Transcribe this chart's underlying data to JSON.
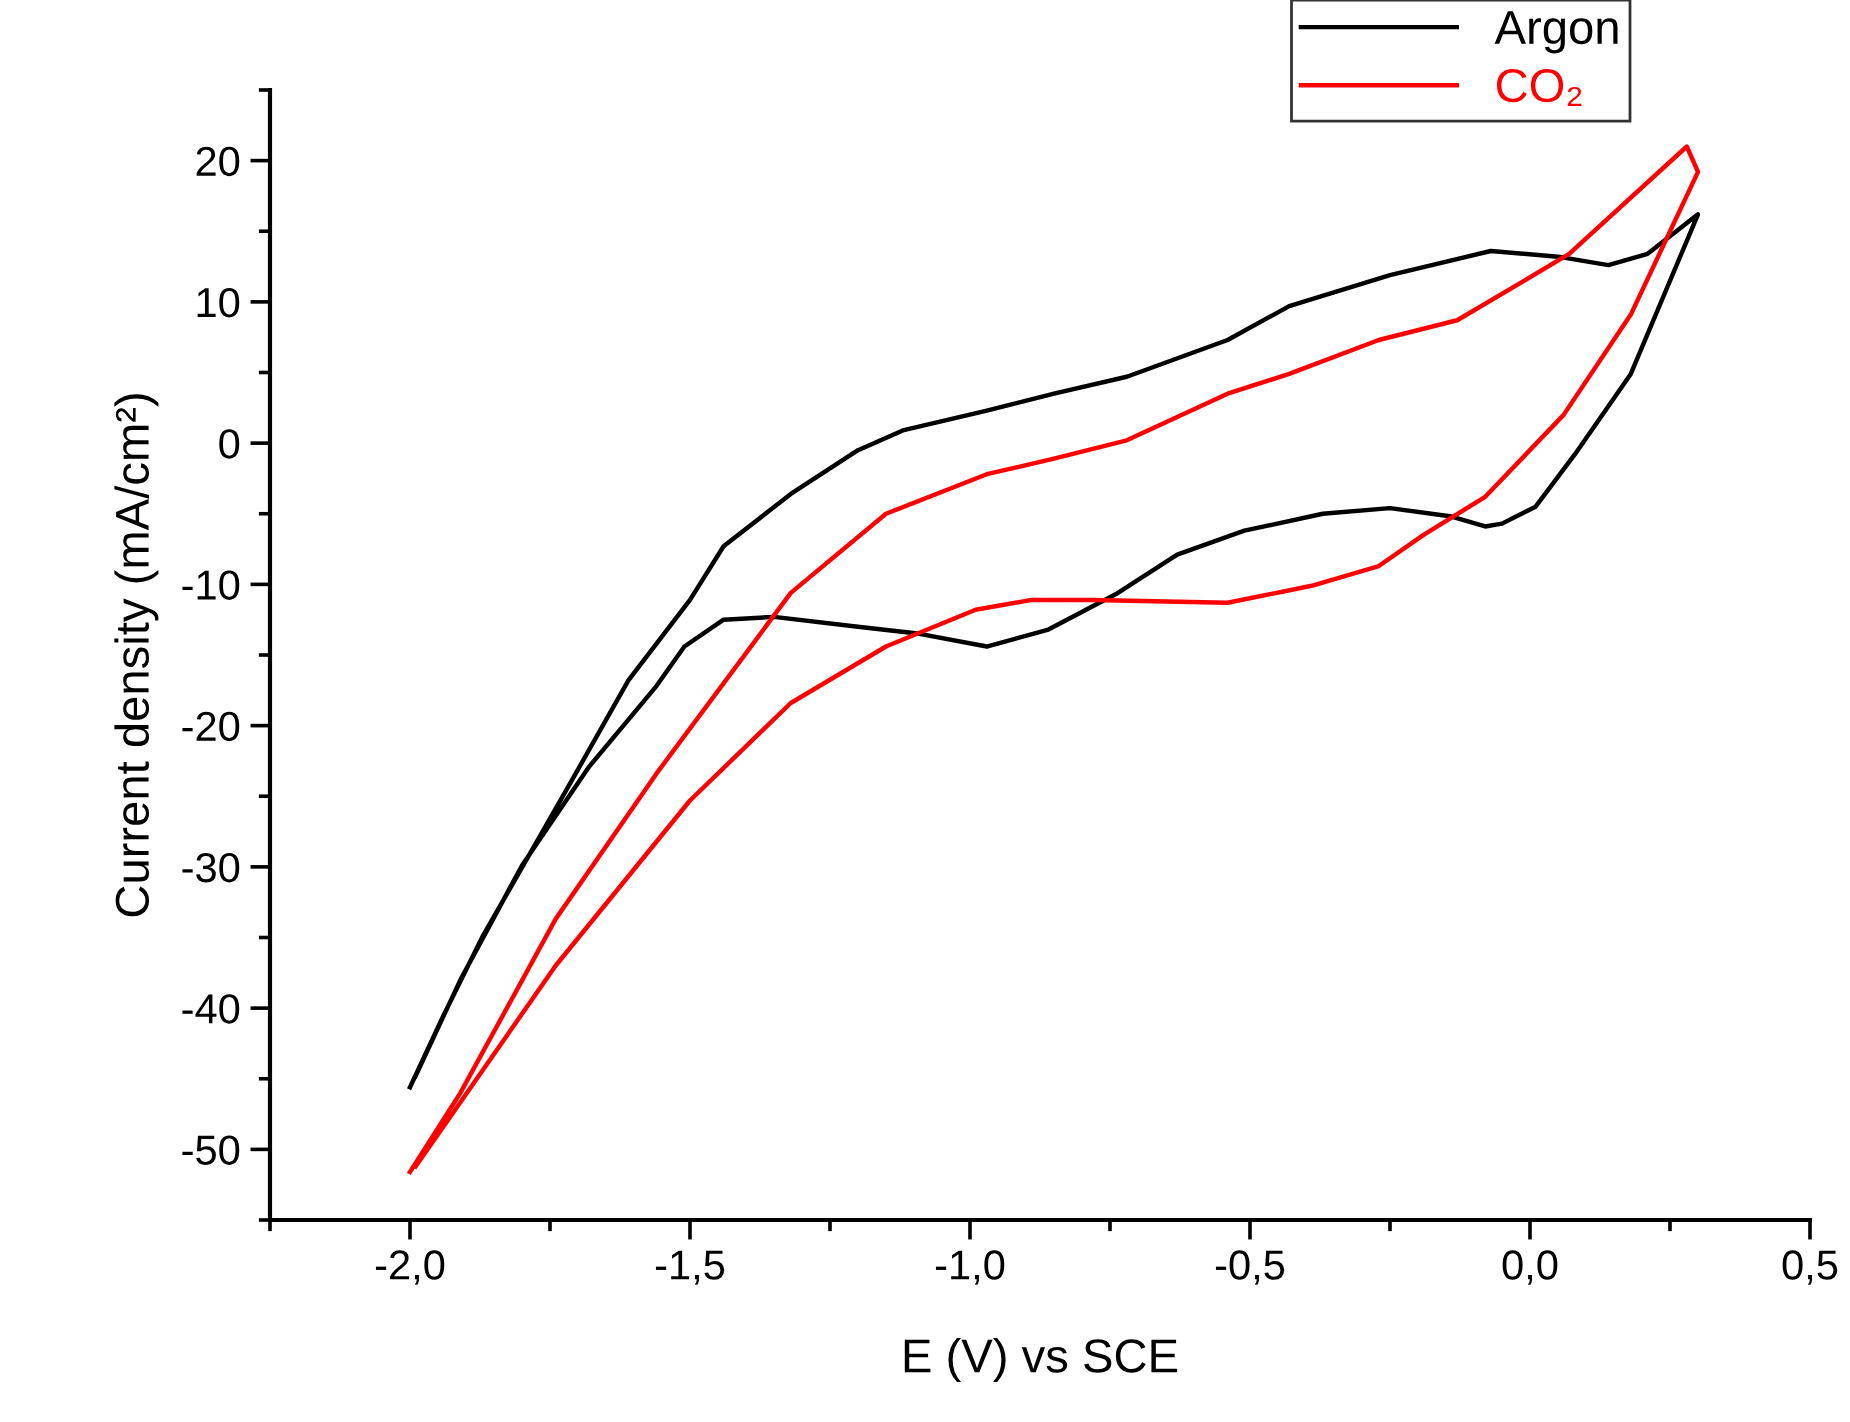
{
  "chart_data": {
    "type": "line",
    "xlabel": "E (V) vs SCE",
    "ylabel": "Current density (mA/cm²)",
    "xlim": [
      -2.25,
      0.5
    ],
    "ylim": [
      -55,
      25
    ],
    "xticks": [
      {
        "value": -2.0,
        "label": "-2,0"
      },
      {
        "value": -1.5,
        "label": "-1,5"
      },
      {
        "value": -1.0,
        "label": "-1,0"
      },
      {
        "value": -0.5,
        "label": "-0,5"
      },
      {
        "value": 0.0,
        "label": "0,0"
      },
      {
        "value": 0.5,
        "label": "0,5"
      }
    ],
    "yticks": [
      -50,
      -40,
      -30,
      -20,
      -10,
      0,
      10,
      20
    ],
    "grid": false,
    "legend": "top right",
    "marker": "none",
    "line_style": "solid",
    "series": [
      {
        "name": "Argon",
        "color": "#000000",
        "x": [
          -2.0,
          -1.94,
          -1.87,
          -1.71,
          -1.61,
          -1.5,
          -1.44,
          -1.32,
          -1.2,
          -1.12,
          -0.97,
          -0.85,
          -0.72,
          -0.54,
          -0.43,
          -0.25,
          -0.07,
          0.05,
          0.14,
          0.21,
          0.3,
          0.18,
          0.08,
          0.01,
          -0.05,
          -0.08,
          -0.14,
          -0.25,
          -0.37,
          -0.51,
          -0.63,
          -0.74,
          -0.86,
          -0.97,
          -1.09,
          -1.2,
          -1.35,
          -1.44,
          -1.51,
          -1.56,
          -1.68,
          -1.8,
          -1.91,
          -1.99
        ],
        "values": [
          -45.6,
          -40.5,
          -34.9,
          -23.8,
          -16.8,
          -11.1,
          -7.3,
          -3.6,
          -0.5,
          0.9,
          2.3,
          3.5,
          4.7,
          7.3,
          9.7,
          11.9,
          13.6,
          13.2,
          12.6,
          13.4,
          16.2,
          4.9,
          -0.8,
          -4.5,
          -5.7,
          -5.9,
          -5.2,
          -4.6,
          -5.0,
          -6.2,
          -7.9,
          -10.7,
          -13.2,
          -14.4,
          -13.5,
          -13.0,
          -12.3,
          -12.5,
          -14.4,
          -17.2,
          -22.9,
          -29.9,
          -38.0,
          -44.8
        ]
      },
      {
        "name": "CO₂",
        "color": "#ff0000",
        "x": [
          -2.0,
          -1.91,
          -1.74,
          -1.56,
          -1.32,
          -1.15,
          -0.97,
          -0.85,
          -0.72,
          -0.54,
          -0.43,
          -0.27,
          -0.13,
          -0.01,
          0.07,
          0.28,
          0.3,
          0.18,
          0.06,
          -0.08,
          -0.19,
          -0.27,
          -0.39,
          -0.54,
          -0.78,
          -0.89,
          -0.99,
          -1.15,
          -1.32,
          -1.5,
          -1.74,
          -1.99
        ],
        "values": [
          -51.6,
          -46.0,
          -33.7,
          -23.4,
          -10.6,
          -5.0,
          -2.2,
          -1.1,
          0.2,
          3.5,
          4.9,
          7.3,
          8.7,
          11.5,
          13.4,
          21.0,
          19.2,
          9.1,
          2.0,
          -3.8,
          -6.5,
          -8.7,
          -10.1,
          -11.3,
          -11.1,
          -11.1,
          -11.8,
          -14.4,
          -18.4,
          -25.3,
          -37.0,
          -51.2
        ]
      }
    ]
  }
}
